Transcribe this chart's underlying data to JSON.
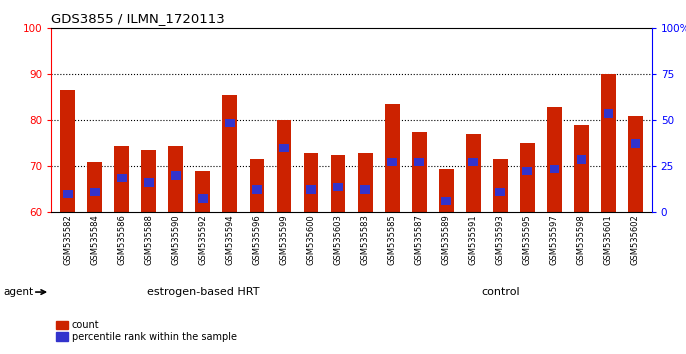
{
  "title": "GDS3855 / ILMN_1720113",
  "samples": [
    "GSM535582",
    "GSM535584",
    "GSM535586",
    "GSM535588",
    "GSM535590",
    "GSM535592",
    "GSM535594",
    "GSM535596",
    "GSM535599",
    "GSM535600",
    "GSM535603",
    "GSM535583",
    "GSM535585",
    "GSM535587",
    "GSM535589",
    "GSM535591",
    "GSM535593",
    "GSM535595",
    "GSM535597",
    "GSM535598",
    "GSM535601",
    "GSM535602"
  ],
  "count_values": [
    86.5,
    71.0,
    74.5,
    73.5,
    74.5,
    69.0,
    85.5,
    71.5,
    80.0,
    73.0,
    72.5,
    73.0,
    83.5,
    77.5,
    69.5,
    77.0,
    71.5,
    75.0,
    83.0,
    79.0,
    90.0,
    81.0
  ],
  "percentile_values": [
    64.0,
    64.5,
    67.5,
    66.5,
    68.0,
    63.0,
    79.5,
    65.0,
    74.0,
    65.0,
    65.5,
    65.0,
    71.0,
    71.0,
    62.5,
    71.0,
    64.5,
    69.0,
    69.5,
    71.5,
    81.5,
    75.0
  ],
  "group1_label": "estrogen-based HRT",
  "group2_label": "control",
  "group1_count": 11,
  "group2_count": 11,
  "ymin": 60,
  "ymax": 100,
  "yticks_left": [
    60,
    70,
    80,
    90,
    100
  ],
  "right_ytick_values": [
    60,
    70,
    80,
    90,
    100
  ],
  "right_ytick_labels": [
    "0",
    "25",
    "50",
    "75",
    "100%"
  ],
  "bar_color": "#CC2200",
  "percentile_color": "#3333CC",
  "group_bg_color": "#88DD66",
  "axis_bg_color": "#CCCCCC",
  "legend_count_label": "count",
  "legend_percentile_label": "percentile rank within the sample",
  "agent_label": "agent"
}
